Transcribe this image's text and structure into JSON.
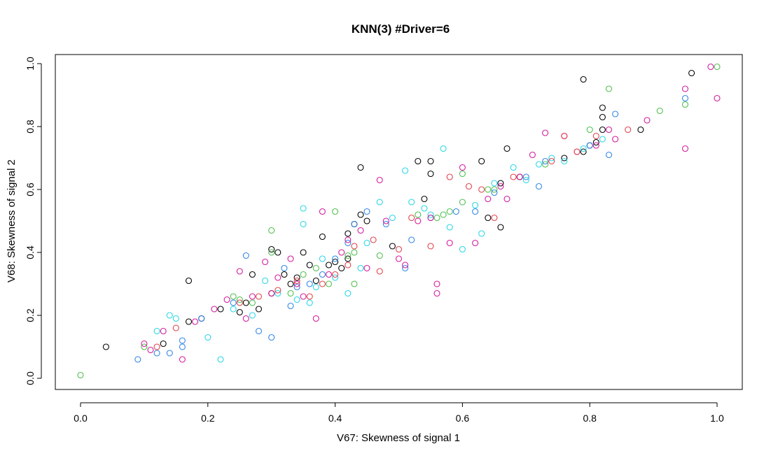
{
  "chart_data": {
    "type": "scatter",
    "title": "KNN(3)  #Driver=6",
    "xlabel": "V67: Skewness of signal 1",
    "ylabel": "V68: Skewness of signal 2",
    "xlim": [
      0.0,
      1.0
    ],
    "ylim": [
      0.0,
      1.0
    ],
    "xticks": [
      "0.0",
      "0.2",
      "0.4",
      "0.6",
      "0.8",
      "1.0"
    ],
    "yticks": [
      "0.0",
      "0.2",
      "0.4",
      "0.6",
      "0.8",
      "1.0"
    ],
    "grid": false,
    "legend": "none",
    "series": [
      {
        "name": "group-black",
        "color": "#000000",
        "points": [
          [
            0.04,
            0.1
          ],
          [
            0.13,
            0.11
          ],
          [
            0.17,
            0.18
          ],
          [
            0.17,
            0.31
          ],
          [
            0.19,
            0.19
          ],
          [
            0.22,
            0.22
          ],
          [
            0.25,
            0.21
          ],
          [
            0.26,
            0.24
          ],
          [
            0.27,
            0.33
          ],
          [
            0.28,
            0.22
          ],
          [
            0.3,
            0.27
          ],
          [
            0.3,
            0.41
          ],
          [
            0.31,
            0.4
          ],
          [
            0.32,
            0.33
          ],
          [
            0.33,
            0.3
          ],
          [
            0.34,
            0.32
          ],
          [
            0.35,
            0.4
          ],
          [
            0.36,
            0.36
          ],
          [
            0.37,
            0.31
          ],
          [
            0.38,
            0.45
          ],
          [
            0.39,
            0.36
          ],
          [
            0.4,
            0.37
          ],
          [
            0.41,
            0.35
          ],
          [
            0.42,
            0.38
          ],
          [
            0.42,
            0.46
          ],
          [
            0.43,
            0.49
          ],
          [
            0.44,
            0.52
          ],
          [
            0.44,
            0.67
          ],
          [
            0.45,
            0.5
          ],
          [
            0.49,
            0.42
          ],
          [
            0.53,
            0.69
          ],
          [
            0.54,
            0.57
          ],
          [
            0.55,
            0.65
          ],
          [
            0.55,
            0.69
          ],
          [
            0.63,
            0.69
          ],
          [
            0.64,
            0.51
          ],
          [
            0.66,
            0.48
          ],
          [
            0.66,
            0.62
          ],
          [
            0.67,
            0.73
          ],
          [
            0.69,
            0.64
          ],
          [
            0.76,
            0.7
          ],
          [
            0.79,
            0.72
          ],
          [
            0.79,
            0.95
          ],
          [
            0.8,
            0.74
          ],
          [
            0.81,
            0.75
          ],
          [
            0.82,
            0.86
          ],
          [
            0.82,
            0.83
          ],
          [
            0.82,
            0.79
          ],
          [
            0.88,
            0.79
          ],
          [
            0.96,
            0.97
          ]
        ]
      },
      {
        "name": "group-green",
        "color": "#4dbe4d",
        "points": [
          [
            0.0,
            0.01
          ],
          [
            0.1,
            0.1
          ],
          [
            0.24,
            0.26
          ],
          [
            0.25,
            0.25
          ],
          [
            0.27,
            0.24
          ],
          [
            0.3,
            0.4
          ],
          [
            0.3,
            0.47
          ],
          [
            0.33,
            0.27
          ],
          [
            0.35,
            0.33
          ],
          [
            0.37,
            0.35
          ],
          [
            0.39,
            0.3
          ],
          [
            0.4,
            0.53
          ],
          [
            0.42,
            0.39
          ],
          [
            0.43,
            0.3
          ],
          [
            0.43,
            0.4
          ],
          [
            0.47,
            0.39
          ],
          [
            0.53,
            0.52
          ],
          [
            0.56,
            0.51
          ],
          [
            0.57,
            0.52
          ],
          [
            0.58,
            0.53
          ],
          [
            0.6,
            0.56
          ],
          [
            0.6,
            0.65
          ],
          [
            0.64,
            0.6
          ],
          [
            0.65,
            0.6
          ],
          [
            0.73,
            0.68
          ],
          [
            0.8,
            0.79
          ],
          [
            0.83,
            0.92
          ],
          [
            0.91,
            0.85
          ],
          [
            0.95,
            0.87
          ],
          [
            1.0,
            0.99
          ]
        ]
      },
      {
        "name": "group-blue",
        "color": "#2f86e6",
        "points": [
          [
            0.09,
            0.06
          ],
          [
            0.12,
            0.08
          ],
          [
            0.14,
            0.08
          ],
          [
            0.16,
            0.1
          ],
          [
            0.16,
            0.12
          ],
          [
            0.19,
            0.19
          ],
          [
            0.24,
            0.24
          ],
          [
            0.26,
            0.39
          ],
          [
            0.28,
            0.15
          ],
          [
            0.3,
            0.13
          ],
          [
            0.32,
            0.35
          ],
          [
            0.33,
            0.23
          ],
          [
            0.34,
            0.29
          ],
          [
            0.36,
            0.3
          ],
          [
            0.38,
            0.33
          ],
          [
            0.4,
            0.38
          ],
          [
            0.42,
            0.43
          ],
          [
            0.43,
            0.49
          ],
          [
            0.45,
            0.53
          ],
          [
            0.48,
            0.49
          ],
          [
            0.51,
            0.35
          ],
          [
            0.52,
            0.44
          ],
          [
            0.55,
            0.51
          ],
          [
            0.59,
            0.53
          ],
          [
            0.62,
            0.53
          ],
          [
            0.65,
            0.59
          ],
          [
            0.7,
            0.64
          ],
          [
            0.72,
            0.61
          ],
          [
            0.73,
            0.69
          ],
          [
            0.8,
            0.74
          ],
          [
            0.83,
            0.71
          ],
          [
            0.84,
            0.84
          ],
          [
            0.95,
            0.89
          ]
        ]
      },
      {
        "name": "group-cyan",
        "color": "#27d6e6",
        "points": [
          [
            0.12,
            0.15
          ],
          [
            0.14,
            0.2
          ],
          [
            0.15,
            0.19
          ],
          [
            0.2,
            0.13
          ],
          [
            0.22,
            0.06
          ],
          [
            0.24,
            0.22
          ],
          [
            0.27,
            0.2
          ],
          [
            0.29,
            0.31
          ],
          [
            0.31,
            0.27
          ],
          [
            0.34,
            0.25
          ],
          [
            0.35,
            0.49
          ],
          [
            0.35,
            0.54
          ],
          [
            0.36,
            0.24
          ],
          [
            0.37,
            0.29
          ],
          [
            0.38,
            0.38
          ],
          [
            0.4,
            0.32
          ],
          [
            0.42,
            0.27
          ],
          [
            0.44,
            0.35
          ],
          [
            0.45,
            0.43
          ],
          [
            0.47,
            0.56
          ],
          [
            0.49,
            0.51
          ],
          [
            0.51,
            0.66
          ],
          [
            0.52,
            0.56
          ],
          [
            0.54,
            0.54
          ],
          [
            0.55,
            0.52
          ],
          [
            0.57,
            0.73
          ],
          [
            0.58,
            0.48
          ],
          [
            0.6,
            0.41
          ],
          [
            0.62,
            0.55
          ],
          [
            0.63,
            0.46
          ],
          [
            0.65,
            0.62
          ],
          [
            0.68,
            0.67
          ],
          [
            0.7,
            0.63
          ],
          [
            0.72,
            0.68
          ],
          [
            0.74,
            0.7
          ],
          [
            0.76,
            0.69
          ],
          [
            0.79,
            0.73
          ],
          [
            0.82,
            0.76
          ]
        ]
      },
      {
        "name": "group-magenta",
        "color": "#d4179c",
        "points": [
          [
            0.1,
            0.11
          ],
          [
            0.11,
            0.09
          ],
          [
            0.13,
            0.15
          ],
          [
            0.16,
            0.06
          ],
          [
            0.18,
            0.18
          ],
          [
            0.21,
            0.22
          ],
          [
            0.23,
            0.25
          ],
          [
            0.25,
            0.34
          ],
          [
            0.26,
            0.19
          ],
          [
            0.27,
            0.26
          ],
          [
            0.29,
            0.37
          ],
          [
            0.3,
            0.27
          ],
          [
            0.31,
            0.32
          ],
          [
            0.33,
            0.38
          ],
          [
            0.34,
            0.3
          ],
          [
            0.35,
            0.26
          ],
          [
            0.37,
            0.19
          ],
          [
            0.38,
            0.53
          ],
          [
            0.39,
            0.33
          ],
          [
            0.41,
            0.4
          ],
          [
            0.42,
            0.44
          ],
          [
            0.44,
            0.47
          ],
          [
            0.45,
            0.35
          ],
          [
            0.47,
            0.63
          ],
          [
            0.48,
            0.5
          ],
          [
            0.5,
            0.38
          ],
          [
            0.51,
            0.36
          ],
          [
            0.53,
            0.5
          ],
          [
            0.55,
            0.51
          ],
          [
            0.56,
            0.3
          ],
          [
            0.56,
            0.27
          ],
          [
            0.58,
            0.43
          ],
          [
            0.6,
            0.67
          ],
          [
            0.62,
            0.43
          ],
          [
            0.64,
            0.57
          ],
          [
            0.66,
            0.61
          ],
          [
            0.67,
            0.57
          ],
          [
            0.69,
            0.64
          ],
          [
            0.71,
            0.71
          ],
          [
            0.73,
            0.78
          ],
          [
            0.76,
            0.77
          ],
          [
            0.78,
            0.72
          ],
          [
            0.81,
            0.74
          ],
          [
            0.83,
            0.79
          ],
          [
            0.84,
            0.76
          ],
          [
            0.89,
            0.82
          ],
          [
            0.95,
            0.92
          ],
          [
            0.95,
            0.73
          ],
          [
            0.99,
            0.99
          ],
          [
            1.0,
            0.89
          ]
        ]
      },
      {
        "name": "group-red",
        "color": "#e0414a",
        "points": [
          [
            0.12,
            0.1
          ],
          [
            0.15,
            0.16
          ],
          [
            0.25,
            0.24
          ],
          [
            0.28,
            0.26
          ],
          [
            0.31,
            0.28
          ],
          [
            0.34,
            0.31
          ],
          [
            0.36,
            0.26
          ],
          [
            0.38,
            0.3
          ],
          [
            0.4,
            0.33
          ],
          [
            0.42,
            0.36
          ],
          [
            0.43,
            0.42
          ],
          [
            0.46,
            0.44
          ],
          [
            0.47,
            0.34
          ],
          [
            0.5,
            0.41
          ],
          [
            0.52,
            0.51
          ],
          [
            0.55,
            0.42
          ],
          [
            0.58,
            0.64
          ],
          [
            0.61,
            0.61
          ],
          [
            0.63,
            0.6
          ],
          [
            0.65,
            0.51
          ],
          [
            0.68,
            0.64
          ],
          [
            0.74,
            0.69
          ],
          [
            0.76,
            0.77
          ],
          [
            0.78,
            0.72
          ],
          [
            0.81,
            0.77
          ],
          [
            0.86,
            0.79
          ]
        ]
      }
    ]
  }
}
